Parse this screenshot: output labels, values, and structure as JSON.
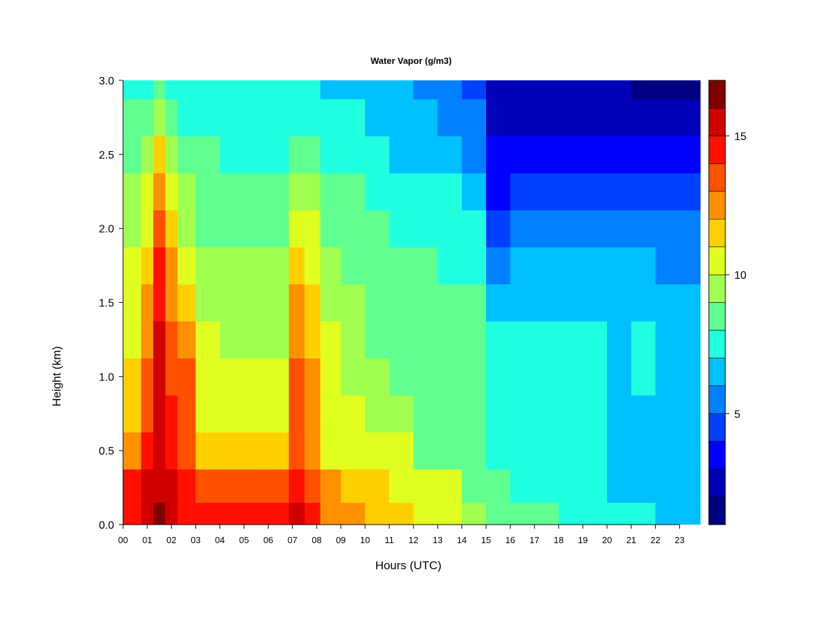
{
  "chart_data": {
    "type": "heatmap",
    "title": "Water Vapor (g/m3)",
    "xlabel": "Hours (UTC)",
    "ylabel": "Height (km)",
    "xlim": [
      0,
      24
    ],
    "ylim": [
      0,
      3
    ],
    "x_ticks": [
      "00",
      "01",
      "02",
      "03",
      "04",
      "05",
      "06",
      "07",
      "08",
      "09",
      "10",
      "11",
      "12",
      "13",
      "14",
      "15",
      "16",
      "17",
      "18",
      "19",
      "20",
      "21",
      "22",
      "23"
    ],
    "y_ticks": [
      "0.0",
      "0.5",
      "1.0",
      "1.5",
      "2.0",
      "2.5",
      "3.0"
    ],
    "colorbar": {
      "range": [
        1,
        17
      ],
      "levels": [
        1,
        2,
        3,
        4,
        5,
        6,
        7,
        8,
        9,
        10,
        11,
        12,
        13,
        14,
        15,
        16,
        17
      ],
      "tick_values": [
        5,
        10,
        15
      ],
      "tick_labels": [
        "5",
        "10",
        "15"
      ],
      "colors": [
        "#000080",
        "#0000b8",
        "#0000ff",
        "#0040ff",
        "#0080ff",
        "#00c0ff",
        "#20ffe0",
        "#60ff90",
        "#a0ff50",
        "#e0ff20",
        "#ffd000",
        "#ff9000",
        "#ff5000",
        "#ff1000",
        "#d00000",
        "#800000"
      ]
    },
    "hours": [
      0.5,
      1.0,
      1.5,
      2.0,
      2.5,
      3.5,
      4.5,
      5.5,
      6.5,
      7.2,
      7.8,
      8.5,
      9.5,
      10.5,
      11.5,
      12.5,
      13.5,
      14.5,
      15.5,
      16.5,
      17.5,
      18.5,
      19.5,
      20.5,
      21.5,
      22.5,
      23.5
    ],
    "heights_km": [
      0.05,
      0.25,
      0.5,
      0.75,
      1.0,
      1.25,
      1.5,
      1.75,
      2.0,
      2.25,
      2.5,
      2.75,
      3.0
    ],
    "values": [
      [
        14,
        14,
        12,
        11,
        11,
        10,
        10,
        10,
        9,
        9,
        8,
        8,
        7
      ],
      [
        15,
        15,
        14,
        13,
        13,
        12,
        12,
        11,
        10,
        10,
        9,
        8,
        7
      ],
      [
        16,
        15,
        15,
        15,
        15,
        15,
        14,
        14,
        13,
        12,
        11,
        9,
        8
      ],
      [
        15,
        15,
        14,
        14,
        13,
        13,
        12,
        12,
        11,
        10,
        9,
        8,
        7
      ],
      [
        14,
        14,
        13,
        13,
        13,
        12,
        11,
        10,
        9,
        9,
        8,
        7,
        7
      ],
      [
        14,
        13,
        11,
        10,
        10,
        10,
        9,
        9,
        8,
        8,
        8,
        7,
        7
      ],
      [
        14,
        13,
        11,
        10,
        10,
        9,
        9,
        9,
        8,
        8,
        7,
        7,
        7
      ],
      [
        14,
        13,
        11,
        10,
        10,
        9,
        9,
        9,
        8,
        8,
        7,
        7,
        7
      ],
      [
        14,
        13,
        11,
        10,
        10,
        9,
        9,
        9,
        8,
        8,
        7,
        7,
        7
      ],
      [
        15,
        14,
        13,
        13,
        13,
        12,
        12,
        11,
        10,
        9,
        8,
        7,
        7
      ],
      [
        14,
        13,
        12,
        12,
        12,
        11,
        11,
        10,
        10,
        9,
        8,
        7,
        7
      ],
      [
        12,
        12,
        10,
        10,
        10,
        10,
        9,
        9,
        8,
        8,
        7,
        7,
        6
      ],
      [
        12,
        11,
        10,
        10,
        9,
        9,
        9,
        8,
        8,
        8,
        7,
        7,
        6
      ],
      [
        11,
        11,
        10,
        9,
        9,
        8,
        8,
        8,
        8,
        7,
        7,
        6,
        6
      ],
      [
        11,
        10,
        10,
        9,
        8,
        8,
        8,
        8,
        7,
        7,
        6,
        6,
        6
      ],
      [
        10,
        10,
        8,
        8,
        8,
        8,
        8,
        8,
        7,
        7,
        6,
        6,
        5
      ],
      [
        10,
        10,
        8,
        8,
        8,
        8,
        8,
        7,
        7,
        7,
        6,
        5,
        5
      ],
      [
        9,
        8,
        8,
        8,
        8,
        8,
        8,
        7,
        7,
        6,
        5,
        5,
        4
      ],
      [
        8,
        8,
        7,
        7,
        7,
        7,
        6,
        5,
        4,
        3,
        3,
        2,
        2
      ],
      [
        8,
        7,
        7,
        7,
        7,
        7,
        6,
        6,
        5,
        4,
        3,
        2,
        2
      ],
      [
        8,
        7,
        7,
        7,
        7,
        7,
        6,
        6,
        5,
        4,
        3,
        2,
        2
      ],
      [
        7,
        7,
        7,
        7,
        7,
        7,
        6,
        6,
        5,
        4,
        3,
        2,
        2
      ],
      [
        7,
        7,
        7,
        7,
        7,
        7,
        6,
        6,
        5,
        4,
        3,
        2,
        2
      ],
      [
        7,
        6,
        6,
        6,
        6,
        6,
        6,
        6,
        5,
        4,
        3,
        2,
        2
      ],
      [
        7,
        6,
        6,
        6,
        7,
        7,
        6,
        6,
        5,
        4,
        3,
        2,
        1
      ],
      [
        6,
        6,
        6,
        6,
        6,
        6,
        6,
        5,
        5,
        4,
        3,
        2,
        1
      ],
      [
        6,
        6,
        6,
        6,
        6,
        6,
        6,
        5,
        5,
        4,
        3,
        2,
        1
      ]
    ]
  }
}
